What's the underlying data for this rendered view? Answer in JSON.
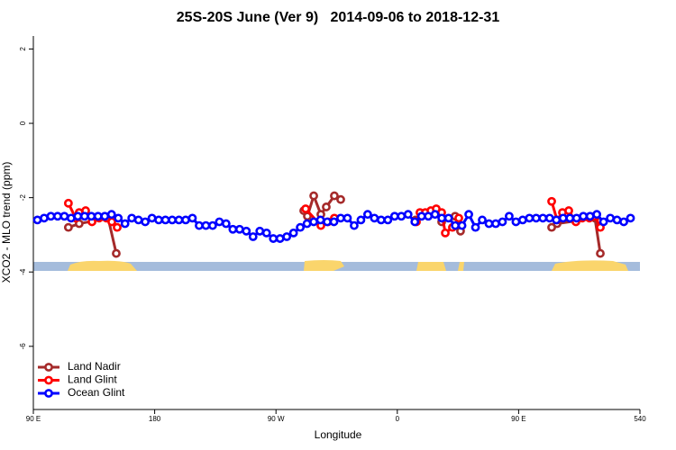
{
  "chart_data": {
    "type": "line",
    "title": "25S-20S June (Ver 9)   2014-09-06 to 2018-12-31",
    "x_label": "Longitude",
    "y_label": "XCO2 - MLO trend (ppm)",
    "xlim": [
      90,
      540
    ],
    "ylim": [
      -7.7,
      2.35
    ],
    "xticks": [
      {
        "value": 90,
        "label": "90 E"
      },
      180,
      {
        "value": 270,
        "label": "90 W"
      },
      {
        "value": 360,
        "label": "0"
      },
      {
        "value": 450,
        "label": "90 E"
      },
      540
    ],
    "yticks": [
      2,
      0,
      -2,
      -4,
      -6
    ],
    "legend": "bottom-left",
    "series": [
      {
        "name": "Land Nadir",
        "color": "#a52a2a",
        "x": [
          116,
          124,
          145.5,
          151.5,
          null,
          290.6,
          293.3,
          298,
          303.3,
          307.3,
          313.3,
          318,
          null,
          373.5,
          null,
          392.9,
          402.9,
          406.9,
          null,
          474.5,
          478.5,
          506.6,
          510.6
        ],
        "values": [
          -2.8,
          -2.7,
          -2.55,
          -3.5,
          null,
          -2.35,
          -2.5,
          -1.95,
          -2.45,
          -2.25,
          -1.95,
          -2.05,
          null,
          -2.6,
          null,
          -2.65,
          -2.5,
          -2.9,
          null,
          -2.8,
          -2.7,
          -2.55,
          -3.5
        ]
      },
      {
        "name": "Land Glint",
        "color": "#ff0000",
        "x": [
          116,
          121.4,
          124,
          128.8,
          133.5,
          138.8,
          144.2,
          148.2,
          152.2,
          null,
          292,
          303.3,
          308.6,
          313.3,
          null,
          374.2,
          376.8,
          380.8,
          384.9,
          388.9,
          392.9,
          395.6,
          400.9,
          405.6,
          null,
          474.5,
          478.5,
          482.5,
          487.2,
          492.5,
          497.2,
          502.5,
          506.6,
          510.6
        ],
        "values": [
          -2.15,
          -2.55,
          -2.4,
          -2.35,
          -2.65,
          -2.55,
          -2.55,
          -2.65,
          -2.8,
          null,
          -2.3,
          -2.75,
          -2.65,
          -2.55,
          null,
          -2.65,
          -2.4,
          -2.4,
          -2.35,
          -2.3,
          -2.4,
          -2.95,
          -2.8,
          -2.55,
          null,
          -2.1,
          -2.6,
          -2.4,
          -2.35,
          -2.65,
          -2.55,
          -2.55,
          -2.5,
          -2.8
        ]
      },
      {
        "name": "Ocean Glint",
        "color": "#0000ff",
        "x": [
          93,
          98,
          103,
          108,
          113,
          118,
          123,
          128,
          133,
          138,
          143,
          148,
          153,
          158,
          163,
          168,
          173,
          178,
          183,
          188,
          193,
          198,
          203,
          208,
          213,
          218,
          223,
          228,
          233,
          238,
          243,
          248,
          253,
          258,
          263,
          268,
          273,
          278,
          283,
          288,
          293,
          298,
          303,
          308,
          313,
          318,
          323,
          328,
          333,
          338,
          343,
          348,
          353,
          358,
          363,
          368,
          373,
          378,
          383,
          388,
          393,
          398,
          403,
          408,
          413,
          418,
          423,
          428,
          433,
          438,
          443,
          448,
          453,
          458,
          463,
          468,
          473,
          478,
          483,
          488,
          493,
          498,
          503,
          508,
          513,
          518,
          523,
          528,
          533
        ],
        "values": [
          -2.6,
          -2.55,
          -2.5,
          -2.5,
          -2.5,
          -2.55,
          -2.5,
          -2.5,
          -2.5,
          -2.5,
          -2.5,
          -2.45,
          -2.55,
          -2.7,
          -2.55,
          -2.6,
          -2.65,
          -2.55,
          -2.6,
          -2.6,
          -2.6,
          -2.6,
          -2.6,
          -2.55,
          -2.75,
          -2.75,
          -2.75,
          -2.65,
          -2.7,
          -2.85,
          -2.85,
          -2.9,
          -3.05,
          -2.9,
          -2.95,
          -3.1,
          -3.1,
          -3.05,
          -2.95,
          -2.8,
          -2.7,
          -2.65,
          -2.6,
          -2.65,
          -2.65,
          -2.55,
          -2.55,
          -2.75,
          -2.6,
          -2.45,
          -2.55,
          -2.6,
          -2.6,
          -2.5,
          -2.5,
          -2.45,
          -2.65,
          -2.5,
          -2.5,
          -2.45,
          -2.55,
          -2.55,
          -2.75,
          -2.75,
          -2.45,
          -2.8,
          -2.6,
          -2.7,
          -2.7,
          -2.65,
          -2.5,
          -2.65,
          -2.6,
          -2.55,
          -2.55,
          -2.55,
          -2.55,
          -2.6,
          -2.55,
          -2.55,
          -2.55,
          -2.5,
          -2.5,
          -2.45,
          -2.65,
          -2.55,
          -2.6,
          -2.65,
          -2.55
        ]
      }
    ]
  }
}
